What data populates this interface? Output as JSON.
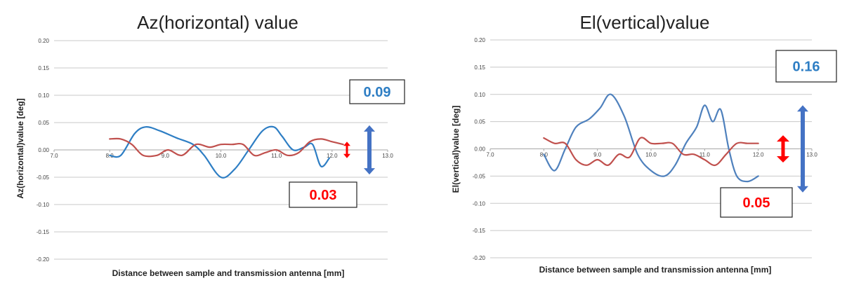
{
  "chart_data": [
    {
      "type": "line",
      "title": "Az(horizontal) value",
      "xlabel": "Distance between sample and transmission antenna [mm]",
      "ylabel": "Az(horizontal)value [deg]",
      "xlim": [
        7.0,
        13.0
      ],
      "ylim": [
        -0.2,
        0.2
      ],
      "x_tick_labels": [
        "7.0",
        "8.0",
        "9.0",
        "10.0",
        "11.0",
        "12.0",
        "13.0"
      ],
      "y_tick_labels": [
        "0.20",
        "0.15",
        "0.10",
        "0.05",
        "0.00",
        "-0.05",
        "-0.10",
        "-0.15",
        "-0.20"
      ],
      "y_ticks": [
        0.2,
        0.15,
        0.1,
        0.05,
        0.0,
        -0.05,
        -0.1,
        -0.15,
        -0.2
      ],
      "grid": true,
      "series": [
        {
          "color": "#2e7ec4",
          "x": [
            8.0,
            8.2,
            8.45,
            8.65,
            8.9,
            9.2,
            9.5,
            9.7,
            10.0,
            10.25,
            10.5,
            10.75,
            10.95,
            11.1,
            11.3,
            11.5,
            11.65,
            11.8,
            11.95
          ],
          "y": [
            -0.01,
            -0.01,
            0.03,
            0.042,
            0.035,
            0.022,
            0.01,
            -0.01,
            -0.05,
            -0.035,
            0.0,
            0.035,
            0.042,
            0.025,
            0.0,
            0.005,
            0.01,
            -0.03,
            -0.015
          ]
        },
        {
          "color": "#c0504d",
          "x": [
            8.0,
            8.2,
            8.4,
            8.6,
            8.85,
            9.05,
            9.3,
            9.55,
            9.8,
            10.0,
            10.2,
            10.4,
            10.6,
            10.8,
            11.0,
            11.2,
            11.4,
            11.6,
            11.8,
            12.0,
            12.2
          ],
          "y": [
            0.02,
            0.02,
            0.01,
            -0.01,
            -0.01,
            0.0,
            -0.01,
            0.01,
            0.005,
            0.01,
            0.01,
            0.01,
            -0.01,
            -0.005,
            0.0,
            -0.01,
            -0.005,
            0.015,
            0.02,
            0.015,
            0.01
          ]
        }
      ],
      "annotations": [
        {
          "text": "0.09",
          "color": "#2e7ec4",
          "arrow_color": "#4472c4",
          "range": 0.09
        },
        {
          "text": "0.03",
          "color": "#ff0000",
          "arrow_color": "#ff0000",
          "range": 0.03
        }
      ]
    },
    {
      "type": "line",
      "title": "El(vertical)value",
      "xlabel": "Distance between sample and transmission antenna [mm]",
      "ylabel": "El(vertical)value [deg]",
      "xlim": [
        7.0,
        13.0
      ],
      "ylim": [
        -0.2,
        0.2
      ],
      "x_tick_labels": [
        "7.0",
        "8.0",
        "9.0",
        "10.0",
        "11.0",
        "12.0",
        "13.0"
      ],
      "y_tick_labels": [
        "0.20",
        "0.15",
        "0.10",
        "0.05",
        "0.00",
        "-0.05",
        "-0.10",
        "-0.15",
        "-0.20"
      ],
      "y_ticks": [
        0.2,
        0.15,
        0.1,
        0.05,
        0.0,
        -0.05,
        -0.1,
        -0.15,
        -0.2
      ],
      "grid": true,
      "series": [
        {
          "color": "#4f81bd",
          "x": [
            8.0,
            8.2,
            8.4,
            8.6,
            8.85,
            9.05,
            9.25,
            9.5,
            9.75,
            10.0,
            10.25,
            10.45,
            10.65,
            10.85,
            11.0,
            11.15,
            11.3,
            11.45,
            11.6,
            11.8,
            12.0
          ],
          "y": [
            -0.01,
            -0.04,
            0.0,
            0.04,
            0.055,
            0.075,
            0.1,
            0.06,
            -0.01,
            -0.04,
            -0.05,
            -0.03,
            0.01,
            0.04,
            0.08,
            0.05,
            0.072,
            0.0,
            -0.05,
            -0.06,
            -0.05
          ]
        },
        {
          "color": "#c0504d",
          "x": [
            8.0,
            8.2,
            8.4,
            8.6,
            8.8,
            9.0,
            9.2,
            9.4,
            9.6,
            9.8,
            10.0,
            10.2,
            10.4,
            10.6,
            10.8,
            11.0,
            11.2,
            11.4,
            11.6,
            11.8,
            12.0
          ],
          "y": [
            0.02,
            0.01,
            0.01,
            -0.02,
            -0.03,
            -0.02,
            -0.03,
            -0.01,
            -0.015,
            0.02,
            0.01,
            0.01,
            0.01,
            -0.01,
            -0.01,
            -0.02,
            -0.03,
            -0.01,
            0.01,
            0.01,
            0.01
          ]
        }
      ],
      "annotations": [
        {
          "text": "0.16",
          "color": "#2e7ec4",
          "arrow_color": "#4472c4",
          "range": 0.16
        },
        {
          "text": "0.05",
          "color": "#ff0000",
          "arrow_color": "#ff0000",
          "range": 0.05
        }
      ]
    }
  ]
}
